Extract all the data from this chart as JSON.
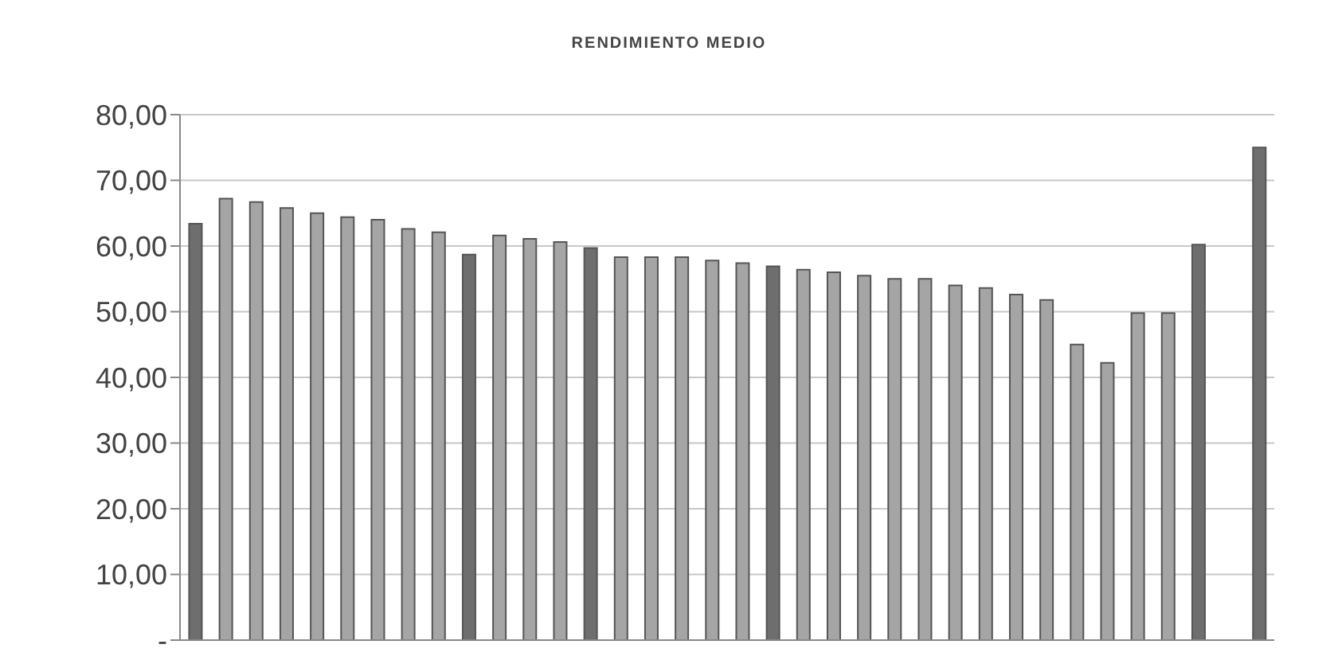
{
  "chart_data": {
    "type": "bar",
    "title": "RENDIMIENTO MEDIO",
    "categories": [
      null,
      null,
      null,
      null,
      null,
      null,
      null,
      null,
      null,
      null,
      null,
      null,
      null,
      null,
      null,
      null,
      null,
      null,
      null,
      null,
      null,
      null,
      null,
      null,
      null,
      null,
      null,
      null,
      null,
      null,
      null,
      null,
      null,
      null,
      null,
      null
    ],
    "values": [
      63.4,
      67.2,
      66.7,
      65.8,
      65.0,
      64.4,
      64.0,
      62.6,
      62.1,
      58.7,
      61.6,
      61.1,
      60.6,
      59.7,
      58.3,
      58.3,
      58.3,
      57.8,
      57.4,
      56.9,
      56.4,
      56.0,
      55.5,
      55.0,
      55.0,
      54.0,
      53.6,
      52.6,
      51.8,
      45.0,
      42.2,
      49.8,
      49.8,
      60.2,
      null,
      75.0
    ],
    "colors": [
      "#6e6e6e",
      "#a5a5a5",
      "#a5a5a5",
      "#a5a5a5",
      "#a5a5a5",
      "#a5a5a5",
      "#a5a5a5",
      "#a5a5a5",
      "#a5a5a5",
      "#6e6e6e",
      "#a5a5a5",
      "#a5a5a5",
      "#a5a5a5",
      "#6e6e6e",
      "#a5a5a5",
      "#a5a5a5",
      "#a5a5a5",
      "#a5a5a5",
      "#a5a5a5",
      "#6e6e6e",
      "#a5a5a5",
      "#a5a5a5",
      "#a5a5a5",
      "#a5a5a5",
      "#a5a5a5",
      "#a5a5a5",
      "#a5a5a5",
      "#a5a5a5",
      "#a5a5a5",
      "#a5a5a5",
      "#a5a5a5",
      "#a5a5a5",
      "#a5a5a5",
      "#6e6e6e",
      "#a5a5a5",
      "#6e6e6e"
    ],
    "ylim": [
      0,
      80
    ],
    "yticks": [
      {
        "value": 0,
        "label": "-"
      },
      {
        "value": 10,
        "label": "10,00"
      },
      {
        "value": 20,
        "label": "20,00"
      },
      {
        "value": 30,
        "label": "30,00"
      },
      {
        "value": 40,
        "label": "40,00"
      },
      {
        "value": 50,
        "label": "50,00"
      },
      {
        "value": 60,
        "label": "60,00"
      },
      {
        "value": 70,
        "label": "70,00"
      },
      {
        "value": 80,
        "label": "80,00"
      }
    ],
    "grid": "y"
  }
}
